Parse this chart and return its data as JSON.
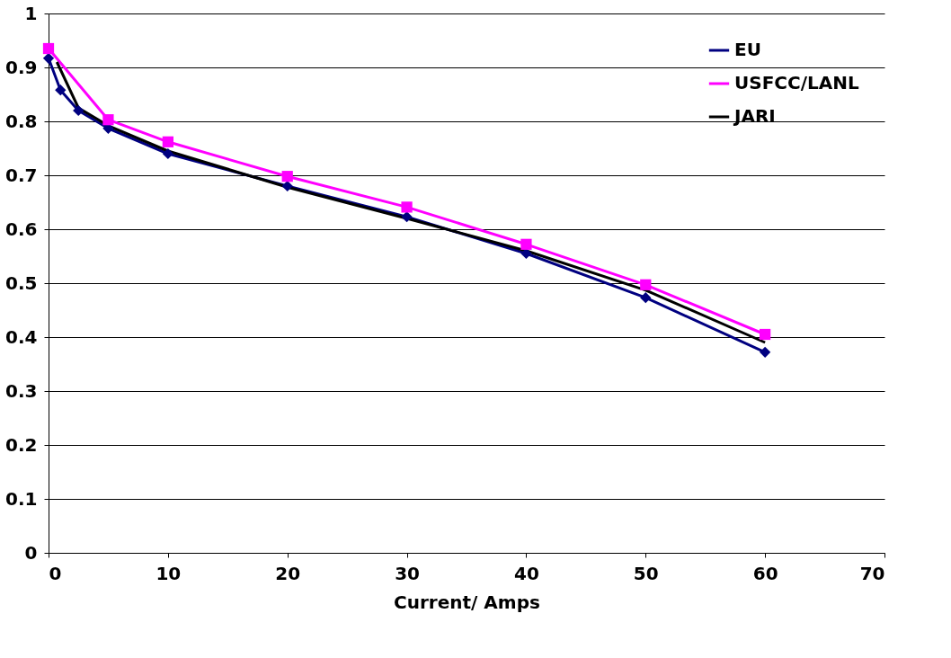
{
  "chart_data": {
    "type": "line",
    "xlabel": "Current/ Amps",
    "xlim": [
      0,
      70
    ],
    "xticks": [
      0,
      10,
      20,
      30,
      40,
      50,
      60,
      70
    ],
    "ylim": [
      0,
      1
    ],
    "yticks": [
      0,
      0.1,
      0.2,
      0.3,
      0.4,
      0.5,
      0.6,
      0.7,
      0.8,
      0.9,
      1
    ],
    "grid": "y",
    "legend": "top right",
    "line_style": "solid",
    "series": [
      {
        "name": "EU",
        "color": "#000080",
        "marker": "diamond",
        "x": [
          0,
          1,
          2.5,
          5,
          10,
          20,
          30,
          40,
          50,
          60
        ],
        "values": [
          0.917,
          0.858,
          0.82,
          0.787,
          0.74,
          0.68,
          0.623,
          0.555,
          0.473,
          0.372
        ]
      },
      {
        "name": "USFCC/LANL",
        "color": "#ff00ff",
        "marker": "square",
        "x": [
          0,
          5,
          10,
          20,
          30,
          40,
          50,
          60
        ],
        "values": [
          0.935,
          0.803,
          0.762,
          0.698,
          0.641,
          0.572,
          0.497,
          0.405
        ]
      },
      {
        "name": "JARI",
        "color": "#000000",
        "marker": "none",
        "x": [
          0.7,
          2.5,
          5,
          10,
          20,
          30,
          40,
          50,
          60
        ],
        "values": [
          0.91,
          0.825,
          0.792,
          0.745,
          0.678,
          0.62,
          0.56,
          0.487,
          0.39
        ]
      }
    ]
  }
}
